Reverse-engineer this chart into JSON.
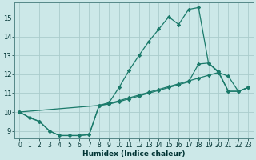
{
  "xlabel": "Humidex (Indice chaleur)",
  "bg_color": "#cce8e8",
  "grid_color": "#aacccc",
  "line_color": "#1a7a6a",
  "xlim": [
    -0.5,
    23.5
  ],
  "ylim": [
    8.6,
    15.8
  ],
  "xticks": [
    0,
    1,
    2,
    3,
    4,
    5,
    6,
    7,
    8,
    9,
    10,
    11,
    12,
    13,
    14,
    15,
    16,
    17,
    18,
    19,
    20,
    21,
    22,
    23
  ],
  "yticks": [
    9,
    10,
    11,
    12,
    13,
    14,
    15
  ],
  "line1_x": [
    0,
    1,
    2,
    3,
    4,
    5,
    6,
    7,
    8,
    9,
    10,
    11,
    12,
    13,
    14,
    15,
    16,
    17,
    18,
    19,
    20,
    21,
    22,
    23
  ],
  "line1_y": [
    10.0,
    9.7,
    9.5,
    9.0,
    8.75,
    8.75,
    8.75,
    8.8,
    10.35,
    10.5,
    11.3,
    12.2,
    13.0,
    13.75,
    14.4,
    15.05,
    14.65,
    15.45,
    15.55,
    12.6,
    12.1,
    11.9,
    11.1,
    11.3
  ],
  "line2_x": [
    0,
    1,
    2,
    3,
    4,
    5,
    6,
    7,
    8,
    9,
    10,
    11,
    12,
    13,
    14,
    15,
    16,
    17,
    18,
    19,
    20,
    21,
    22,
    23
  ],
  "line2_y": [
    10.0,
    9.7,
    9.5,
    9.0,
    8.75,
    8.75,
    8.75,
    8.8,
    10.35,
    10.45,
    10.6,
    10.75,
    10.9,
    11.05,
    11.2,
    11.35,
    11.5,
    11.65,
    11.8,
    11.95,
    12.1,
    11.1,
    11.1,
    11.3
  ],
  "line3_x": [
    0,
    8,
    9,
    10,
    11,
    12,
    13,
    14,
    15,
    16,
    17,
    18,
    19,
    20,
    21,
    22,
    23
  ],
  "line3_y": [
    10.0,
    10.35,
    10.42,
    10.55,
    10.7,
    10.85,
    11.0,
    11.15,
    11.3,
    11.45,
    11.6,
    12.55,
    12.6,
    12.15,
    11.1,
    11.1,
    11.3
  ]
}
